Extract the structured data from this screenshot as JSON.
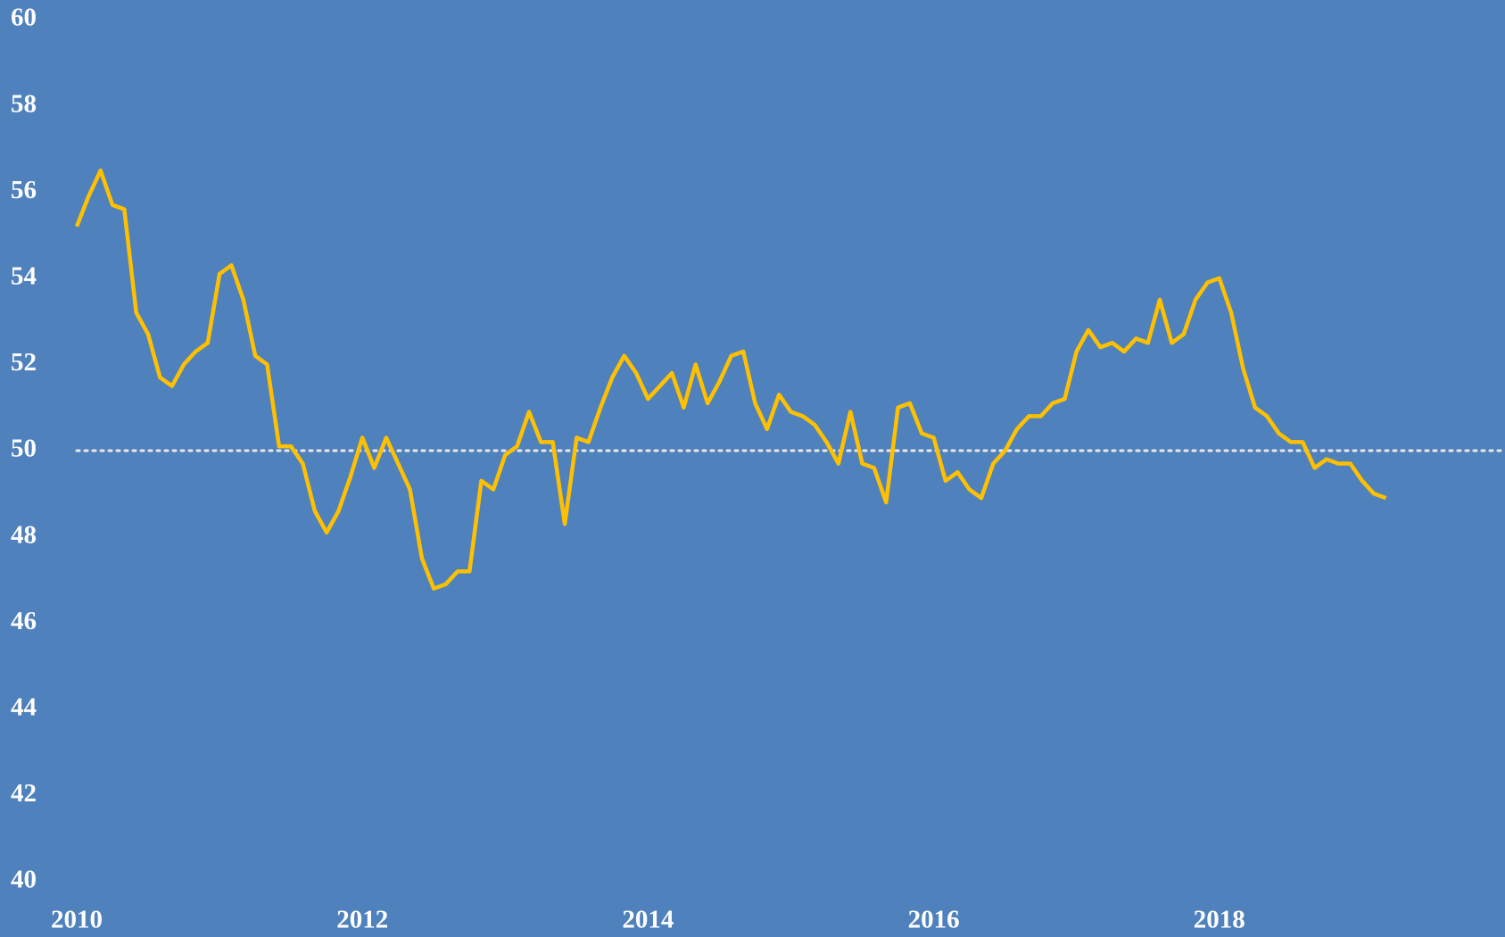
{
  "chart_data": {
    "type": "line",
    "background": "#4f81bd",
    "xlim": [
      2010,
      2020
    ],
    "xticks": [
      2010,
      2012,
      2014,
      2016,
      2018
    ],
    "ylim": [
      40,
      60
    ],
    "yticks": [
      40,
      42,
      44,
      46,
      48,
      50,
      52,
      54,
      56,
      58,
      60
    ],
    "grid": false,
    "reference_line": {
      "value": 50,
      "color": "#e8e8e8",
      "style": "dotted"
    },
    "x": [
      2010,
      2010.083,
      2010.167,
      2010.25,
      2010.333,
      2010.417,
      2010.5,
      2010.583,
      2010.667,
      2010.75,
      2010.833,
      2010.917,
      2011,
      2011.083,
      2011.167,
      2011.25,
      2011.333,
      2011.417,
      2011.5,
      2011.583,
      2011.667,
      2011.75,
      2011.833,
      2011.917,
      2012,
      2012.083,
      2012.167,
      2012.25,
      2012.333,
      2012.417,
      2012.5,
      2012.583,
      2012.667,
      2012.75,
      2012.833,
      2012.917,
      2013,
      2013.083,
      2013.167,
      2013.25,
      2013.333,
      2013.417,
      2013.5,
      2013.583,
      2013.667,
      2013.75,
      2013.833,
      2013.917,
      2014,
      2014.083,
      2014.167,
      2014.25,
      2014.333,
      2014.417,
      2014.5,
      2014.583,
      2014.667,
      2014.75,
      2014.833,
      2014.917,
      2015,
      2015.083,
      2015.167,
      2015.25,
      2015.333,
      2015.417,
      2015.5,
      2015.583,
      2015.667,
      2015.75,
      2015.833,
      2015.917,
      2016,
      2016.083,
      2016.167,
      2016.25,
      2016.333,
      2016.417,
      2016.5,
      2016.583,
      2016.667,
      2016.75,
      2016.833,
      2016.917,
      2017,
      2017.083,
      2017.167,
      2017.25,
      2017.333,
      2017.417,
      2017.5,
      2017.583,
      2017.667,
      2017.75,
      2017.833,
      2017.917,
      2018,
      2018.083,
      2018.167,
      2018.25,
      2018.333,
      2018.417,
      2018.5,
      2018.583,
      2018.667,
      2018.75,
      2018.833,
      2018.917,
      2019,
      2019.083,
      2019.167
    ],
    "series": [
      {
        "color": "#ffc000",
        "values": [
          55.2,
          55.9,
          56.5,
          55.7,
          55.6,
          53.2,
          52.7,
          51.7,
          51.5,
          52.0,
          52.3,
          52.5,
          54.1,
          54.3,
          53.5,
          52.2,
          52.0,
          50.1,
          50.1,
          49.7,
          48.6,
          48.1,
          48.6,
          49.4,
          50.3,
          49.6,
          50.3,
          49.7,
          49.1,
          47.5,
          46.8,
          46.9,
          47.2,
          47.2,
          49.3,
          49.1,
          49.9,
          50.1,
          50.9,
          50.2,
          50.2,
          48.3,
          50.3,
          50.2,
          51.0,
          51.7,
          52.2,
          51.8,
          51.2,
          51.5,
          51.8,
          51.0,
          52.0,
          51.1,
          51.6,
          52.2,
          52.3,
          51.1,
          50.5,
          51.3,
          50.9,
          50.8,
          50.6,
          50.2,
          49.7,
          50.9,
          49.7,
          49.6,
          48.8,
          51.0,
          51.1,
          50.4,
          50.3,
          49.3,
          49.5,
          49.1,
          48.9,
          49.7,
          50.0,
          50.5,
          50.8,
          50.8,
          51.1,
          51.2,
          52.3,
          52.8,
          52.4,
          52.5,
          52.3,
          52.6,
          52.5,
          53.5,
          52.5,
          52.7,
          53.5,
          53.9,
          54.0,
          53.2,
          51.9,
          51.0,
          50.8,
          50.4,
          50.2,
          50.2,
          49.6,
          49.8,
          49.7,
          49.7,
          49.3,
          49.0,
          48.9
        ]
      }
    ]
  }
}
